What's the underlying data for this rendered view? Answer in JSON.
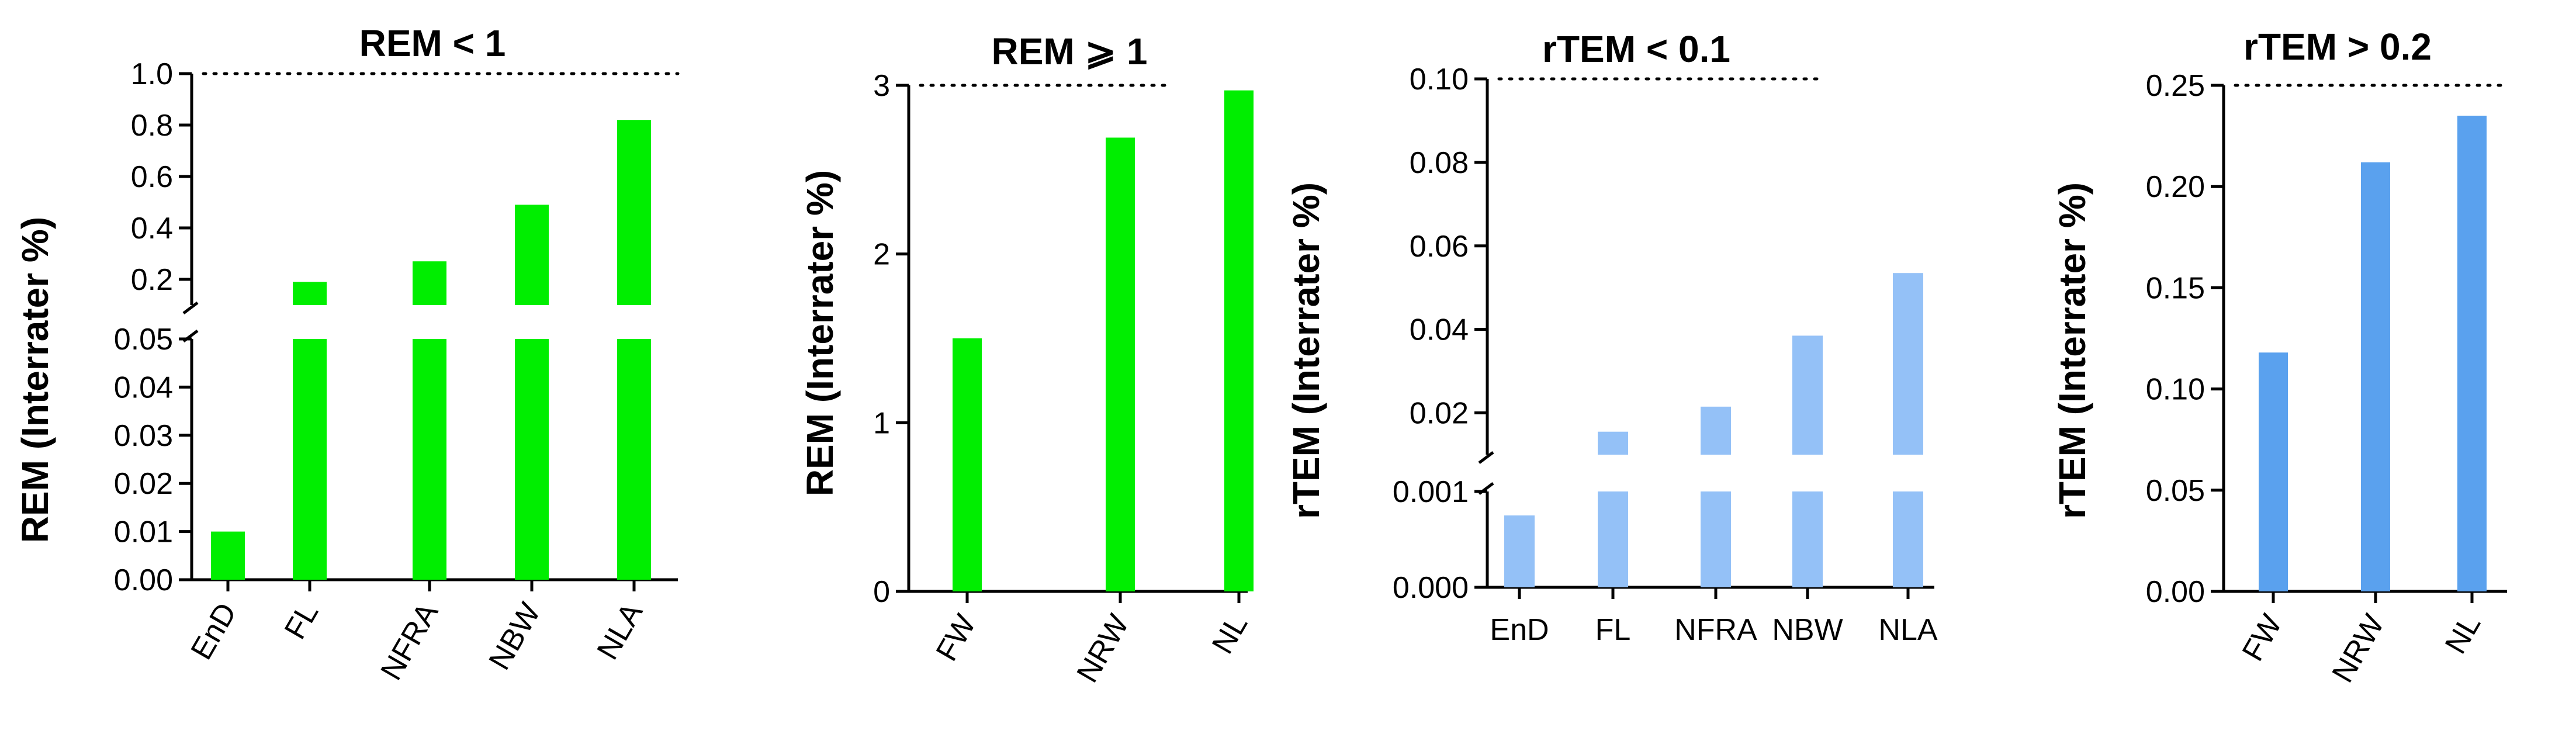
{
  "colors": {
    "green": "#00ee00",
    "light_blue": "#94c1f7",
    "blue": "#5aa1ee"
  },
  "chart_data": [
    {
      "type": "bar",
      "title": "REM < 1",
      "ylabel": "REM (Interrater %)",
      "categories": [
        "EnD",
        "FL",
        "NFRA",
        "NBW",
        "NLA"
      ],
      "values": [
        0.01,
        0.19,
        0.27,
        0.49,
        0.82
      ],
      "color": "#00ee00",
      "broken_axis": true,
      "lower_segment": {
        "ylim": [
          0,
          0.05
        ],
        "ticks": [
          "0.00",
          "0.01",
          "0.02",
          "0.03",
          "0.04",
          "0.05"
        ]
      },
      "upper_segment": {
        "ylim": [
          0.1,
          1.0
        ],
        "ticks": [
          "0.2",
          "0.4",
          "0.6",
          "0.8",
          "1.0"
        ]
      },
      "reference_line": 1.0,
      "rotated_xticks": true
    },
    {
      "type": "bar",
      "title": "REM ⩾ 1",
      "ylabel": "REM (Interrater %)",
      "categories": [
        "FW",
        "NRW",
        "NL"
      ],
      "values": [
        1.5,
        2.69,
        2.97
      ],
      "color": "#00ee00",
      "ylim": [
        0,
        3
      ],
      "ticks": [
        "0",
        "1",
        "2",
        "3"
      ],
      "reference_line": 3,
      "rotated_xticks": true
    },
    {
      "type": "bar",
      "title": "rTEM < 0.1",
      "ylabel": "rTEM (Interrater %)",
      "categories": [
        "EnD",
        "FL",
        "NFRA",
        "NBW",
        "NLA"
      ],
      "values": [
        0.00075,
        0.0155,
        0.0215,
        0.0385,
        0.0535
      ],
      "color": "#94c1f7",
      "broken_axis": true,
      "lower_segment": {
        "ylim": [
          0,
          0.001
        ],
        "ticks": [
          "0.000",
          "0.001"
        ]
      },
      "upper_segment": {
        "ylim": [
          0.01,
          0.1
        ],
        "ticks": [
          "0.02",
          "0.04",
          "0.06",
          "0.08",
          "0.10"
        ]
      },
      "reference_line": 0.1,
      "rotated_xticks": false
    },
    {
      "type": "bar",
      "title": "rTEM > 0.2",
      "ylabel": "rTEM (Interrater %)",
      "categories": [
        "FW",
        "NRW",
        "NL"
      ],
      "values": [
        0.118,
        0.212,
        0.235
      ],
      "color": "#5aa1ee",
      "ylim": [
        0,
        0.25
      ],
      "ticks": [
        "0.00",
        "0.05",
        "0.10",
        "0.15",
        "0.20",
        "0.25"
      ],
      "reference_line": 0.25,
      "rotated_xticks": true
    }
  ]
}
